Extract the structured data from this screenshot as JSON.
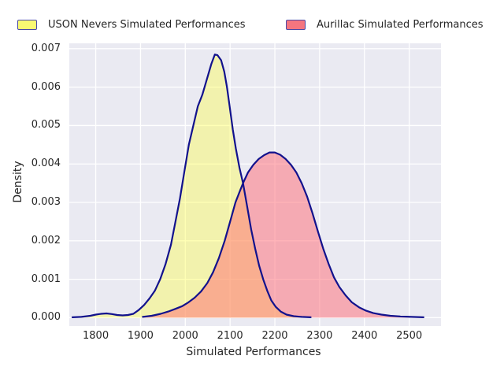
{
  "style": {
    "figure_background": "#ffffff",
    "plot_background": "#eaeaf2",
    "grid_color": "#ffffff",
    "curve_line_color": "#12128d",
    "text_color": "#262626"
  },
  "legend": {
    "items": [
      {
        "label": "USON Nevers Simulated Performances",
        "swatch_color": "#f9f972",
        "swatch_border": "#4a4aa8"
      },
      {
        "label": "Aurillac Simulated Performances",
        "swatch_color": "#f4757f",
        "swatch_border": "#4a4aa8"
      }
    ]
  },
  "chart_data": {
    "type": "area",
    "subtype": "kde-density",
    "title": "",
    "xlabel": "Simulated Performances",
    "ylabel": "Density",
    "xlim": [
      1741,
      2571
    ],
    "ylim": [
      -0.000217,
      0.00714
    ],
    "x_ticks": [
      1800,
      1900,
      2000,
      2100,
      2200,
      2300,
      2400,
      2500
    ],
    "y_ticks": [
      0.0,
      0.001,
      0.002,
      0.003,
      0.004,
      0.005,
      0.006,
      0.007
    ],
    "grid": true,
    "legend_position": "top-center, 2 columns, no frame",
    "series": [
      {
        "name": "USON Nevers Simulated Performances",
        "fill_color": "rgba(255,255,60,0.38)",
        "line_color": "#12128d",
        "peak": {
          "x": 2066,
          "density": 0.00685
        },
        "points": [
          [
            1748,
            1e-05
          ],
          [
            1768,
            2e-05
          ],
          [
            1788,
            5e-05
          ],
          [
            1800,
            8e-05
          ],
          [
            1812,
            0.0001
          ],
          [
            1824,
            0.00011
          ],
          [
            1836,
            9.5e-05
          ],
          [
            1848,
            7e-05
          ],
          [
            1860,
            6e-05
          ],
          [
            1872,
            7e-05
          ],
          [
            1884,
            0.0001
          ],
          [
            1896,
            0.0002
          ],
          [
            1908,
            0.00033
          ],
          [
            1920,
            0.0005
          ],
          [
            1932,
            0.0007
          ],
          [
            1944,
            0.001
          ],
          [
            1956,
            0.0014
          ],
          [
            1968,
            0.0019
          ],
          [
            1978,
            0.0025
          ],
          [
            1988,
            0.0031
          ],
          [
            1998,
            0.0038
          ],
          [
            2008,
            0.0045
          ],
          [
            2018,
            0.005
          ],
          [
            2028,
            0.0055
          ],
          [
            2038,
            0.0058
          ],
          [
            2048,
            0.0062
          ],
          [
            2058,
            0.0066
          ],
          [
            2066,
            0.00685
          ],
          [
            2072,
            0.00683
          ],
          [
            2080,
            0.0067
          ],
          [
            2087,
            0.0064
          ],
          [
            2093,
            0.006
          ],
          [
            2099,
            0.0055
          ],
          [
            2106,
            0.0049
          ],
          [
            2113,
            0.0044
          ],
          [
            2121,
            0.0039
          ],
          [
            2129,
            0.0035
          ],
          [
            2138,
            0.0029
          ],
          [
            2147,
            0.0023
          ],
          [
            2156,
            0.0018
          ],
          [
            2165,
            0.00135
          ],
          [
            2174,
            0.001
          ],
          [
            2183,
            0.0007
          ],
          [
            2192,
            0.00045
          ],
          [
            2202,
            0.00028
          ],
          [
            2213,
            0.00016
          ],
          [
            2226,
            8e-05
          ],
          [
            2242,
            4e-05
          ],
          [
            2260,
            2e-05
          ],
          [
            2280,
            1e-05
          ]
        ]
      },
      {
        "name": "Aurillac Simulated Performances",
        "fill_color": "rgba(255,105,115,0.5)",
        "line_color": "#12128d",
        "peak": {
          "x": 2188,
          "density": 0.0043
        },
        "points": [
          [
            1905,
            2e-05
          ],
          [
            1925,
            5e-05
          ],
          [
            1945,
            0.0001
          ],
          [
            1962,
            0.00016
          ],
          [
            1978,
            0.00023
          ],
          [
            1993,
            0.0003
          ],
          [
            2007,
            0.0004
          ],
          [
            2021,
            0.00052
          ],
          [
            2035,
            0.00068
          ],
          [
            2049,
            0.0009
          ],
          [
            2062,
            0.00118
          ],
          [
            2075,
            0.00155
          ],
          [
            2088,
            0.002
          ],
          [
            2100,
            0.0025
          ],
          [
            2112,
            0.003
          ],
          [
            2122,
            0.0033
          ],
          [
            2129,
            0.0035
          ],
          [
            2140,
            0.00378
          ],
          [
            2152,
            0.00398
          ],
          [
            2164,
            0.00413
          ],
          [
            2176,
            0.00423
          ],
          [
            2188,
            0.0043
          ],
          [
            2200,
            0.0043
          ],
          [
            2212,
            0.00424
          ],
          [
            2224,
            0.00413
          ],
          [
            2236,
            0.00398
          ],
          [
            2248,
            0.00378
          ],
          [
            2260,
            0.0035
          ],
          [
            2272,
            0.00315
          ],
          [
            2284,
            0.00272
          ],
          [
            2296,
            0.00225
          ],
          [
            2308,
            0.0018
          ],
          [
            2320,
            0.0014
          ],
          [
            2332,
            0.00105
          ],
          [
            2344,
            0.0008
          ],
          [
            2358,
            0.00058
          ],
          [
            2372,
            0.0004
          ],
          [
            2388,
            0.00027
          ],
          [
            2404,
            0.00018
          ],
          [
            2420,
            0.00012
          ],
          [
            2438,
            8e-05
          ],
          [
            2458,
            5e-05
          ],
          [
            2480,
            3e-05
          ],
          [
            2505,
            2e-05
          ],
          [
            2532,
            1e-05
          ]
        ]
      }
    ]
  }
}
